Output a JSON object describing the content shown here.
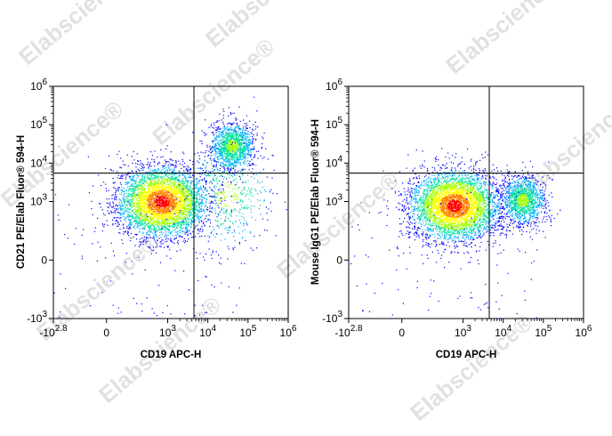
{
  "watermark": "Elabscience®",
  "chart_data": [
    {
      "type": "scatter",
      "xlabel": "CD19 APC-H",
      "ylabel": "CD21 PE/Elab Fluor® 594-H",
      "x_ticks": [
        "-10^2.8",
        "0",
        "10^3",
        "10^4",
        "10^5",
        "10^6"
      ],
      "y_ticks": [
        "-10^3",
        "0",
        "10^3",
        "10^4",
        "10^5",
        "10^6"
      ],
      "xlim": [
        "-10^2.8",
        "10^6"
      ],
      "ylim": [
        "-10^3",
        "10^6"
      ],
      "scale": "biexponential",
      "quadrant_gate": {
        "x": 4500,
        "y": 5500
      },
      "populations": [
        {
          "name_on_chart": "",
          "x_center": 700,
          "y_center": 1000,
          "density": "high"
        },
        {
          "name_on_chart": "",
          "x_center": 40000,
          "y_center": 28000,
          "density": "medium"
        },
        {
          "name_on_chart": "",
          "x_center": 30000,
          "y_center": 1500,
          "density": "low"
        }
      ],
      "colormap": [
        "#0000ff",
        "#00b0ff",
        "#00e0a0",
        "#a0ff00",
        "#ffff00",
        "#ff8000",
        "#ff0000"
      ]
    },
    {
      "type": "scatter",
      "xlabel": "CD19 APC-H",
      "ylabel": "Mouse IgG1 PE/Elab Fluor® 594-H",
      "x_ticks": [
        "-10^2.8",
        "0",
        "10^3",
        "10^4",
        "10^5",
        "10^6"
      ],
      "y_ticks": [
        "-10^3",
        "0",
        "10^3",
        "10^4",
        "10^5",
        "10^6"
      ],
      "xlim": [
        "-10^2.8",
        "10^6"
      ],
      "ylim": [
        "-10^3",
        "10^6"
      ],
      "scale": "biexponential",
      "quadrant_gate": {
        "x": 4500,
        "y": 5500
      },
      "populations": [
        {
          "name_on_chart": "",
          "x_center": 600,
          "y_center": 800,
          "density": "high"
        },
        {
          "name_on_chart": "",
          "x_center": 30000,
          "y_center": 1100,
          "density": "medium"
        }
      ],
      "colormap": [
        "#0000ff",
        "#00b0ff",
        "#00e0a0",
        "#a0ff00",
        "#ffff00",
        "#ff8000",
        "#ff0000"
      ]
    }
  ]
}
